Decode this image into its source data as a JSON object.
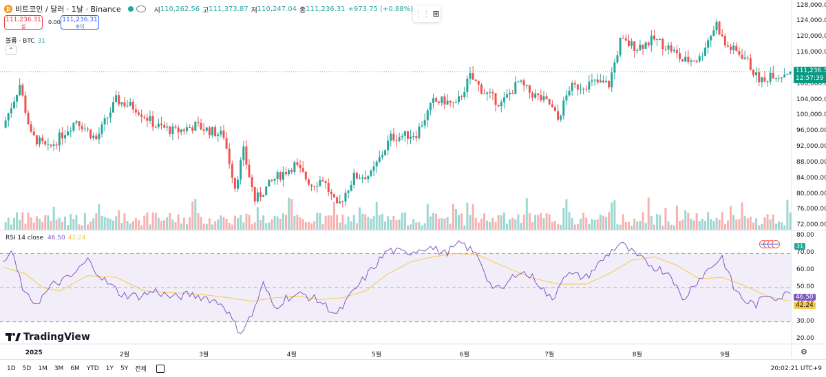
{
  "header": {
    "coin_icon_text": "₿",
    "symbol": "비트코인 / 달러 · 1날 · Binance",
    "open_label": "시",
    "open": "110,262.56",
    "high_label": "고",
    "high": "111,373.87",
    "low_label": "저",
    "low": "110,247.04",
    "close_label": "종",
    "close": "111,236.31",
    "change": "+973.75 (+0.88%)"
  },
  "trade": {
    "sell_price": "111,236.31",
    "sell_label": "셀",
    "spread": "0.00",
    "buy_price": "111,236.31",
    "buy_label": "바이"
  },
  "volume_legend": {
    "label": "볼륨 · BTC",
    "value": "31"
  },
  "volume_badge": "31",
  "rsi_legend": {
    "label": "RSI 14 close",
    "rsi": "46.50",
    "ma": "42.24"
  },
  "price_tag": {
    "value": "111,236.31",
    "countdown": "12:57:39"
  },
  "rsi_tags": {
    "rsi": "46.50",
    "ma": "42.24"
  },
  "price_axis": [
    "128,000.00",
    "124,000.00",
    "120,000.00",
    "116,000.00",
    "108,000.00",
    "104,000.00",
    "100,000.00",
    "96,000.00",
    "92,000.00",
    "88,000.00",
    "84,000.00",
    "80,000.00",
    "76,000.00",
    "72,000.00"
  ],
  "rsi_axis": [
    "80.00",
    "70.00",
    "60.00",
    "50.00",
    "40.00",
    "30.00",
    "20.00"
  ],
  "time_axis": [
    "2025",
    "2월",
    "3월",
    "4월",
    "5월",
    "6월",
    "7월",
    "8월",
    "9월"
  ],
  "timeframes": [
    "1D",
    "5D",
    "1M",
    "3M",
    "6M",
    "YTD",
    "1Y",
    "5Y",
    "전체"
  ],
  "clock": "20:02:21 UTC+9",
  "logo_text": "TradingView",
  "colors": {
    "up": "#26a69a",
    "down": "#ef5350",
    "rsi": "#7e57c2",
    "ma": "#f7c948",
    "rsi_band": "#ede7f6"
  },
  "chart_data": {
    "type": "candlestick",
    "title": "비트코인 / 달러 · 1날 · Binance",
    "x_range": [
      "2024-12-21",
      "2025-09-08"
    ],
    "price_range": [
      71000,
      129500
    ],
    "rsi_range": [
      17,
      83
    ],
    "rsi_levels": [
      70,
      50,
      30
    ],
    "last_price": 111236.31,
    "anchors": [
      [
        0,
        97000
      ],
      [
        6,
        108000
      ],
      [
        10,
        95000
      ],
      [
        16,
        91500
      ],
      [
        26,
        99000
      ],
      [
        33,
        94000
      ],
      [
        40,
        104000
      ],
      [
        47,
        102000
      ],
      [
        54,
        97500
      ],
      [
        61,
        96000
      ],
      [
        68,
        97500
      ],
      [
        78,
        95000
      ],
      [
        82,
        82000
      ],
      [
        85,
        91000
      ],
      [
        89,
        78500
      ],
      [
        96,
        84000
      ],
      [
        103,
        87500
      ],
      [
        109,
        82500
      ],
      [
        113,
        84000
      ],
      [
        118,
        76500
      ],
      [
        124,
        84500
      ],
      [
        130,
        85000
      ],
      [
        137,
        94500
      ],
      [
        142,
        95000
      ],
      [
        146,
        95500
      ],
      [
        152,
        103500
      ],
      [
        156,
        103800
      ],
      [
        160,
        102500
      ],
      [
        165,
        110000
      ],
      [
        170,
        106000
      ],
      [
        176,
        103000
      ],
      [
        182,
        108500
      ],
      [
        186,
        106000
      ],
      [
        193,
        103000
      ],
      [
        196,
        99000
      ],
      [
        200,
        107000
      ],
      [
        209,
        108500
      ],
      [
        214,
        108000
      ],
      [
        218,
        119000
      ],
      [
        224,
        117500
      ],
      [
        230,
        119500
      ],
      [
        236,
        117000
      ],
      [
        240,
        114000
      ],
      [
        246,
        114600
      ],
      [
        248,
        118000
      ],
      [
        252,
        123500
      ],
      [
        255,
        118000
      ],
      [
        262,
        115000
      ],
      [
        266,
        110000
      ],
      [
        269,
        108500
      ],
      [
        271,
        111000
      ],
      [
        274,
        110200
      ],
      [
        277,
        111236
      ]
    ],
    "rsi_anchors": [
      [
        0,
        64
      ],
      [
        3,
        71
      ],
      [
        8,
        45
      ],
      [
        12,
        41
      ],
      [
        18,
        52
      ],
      [
        24,
        56
      ],
      [
        30,
        66
      ],
      [
        36,
        54
      ],
      [
        42,
        46
      ],
      [
        48,
        45
      ],
      [
        54,
        48
      ],
      [
        60,
        44
      ],
      [
        66,
        46
      ],
      [
        72,
        44
      ],
      [
        78,
        40
      ],
      [
        82,
        28
      ],
      [
        84,
        24
      ],
      [
        88,
        34
      ],
      [
        92,
        52
      ],
      [
        96,
        38
      ],
      [
        100,
        44
      ],
      [
        106,
        46
      ],
      [
        112,
        42
      ],
      [
        118,
        34
      ],
      [
        124,
        48
      ],
      [
        130,
        60
      ],
      [
        136,
        72
      ],
      [
        142,
        70
      ],
      [
        150,
        74
      ],
      [
        156,
        70
      ],
      [
        162,
        76
      ],
      [
        168,
        68
      ],
      [
        172,
        52
      ],
      [
        176,
        48
      ],
      [
        182,
        60
      ],
      [
        188,
        55
      ],
      [
        194,
        42
      ],
      [
        198,
        58
      ],
      [
        206,
        56
      ],
      [
        214,
        70
      ],
      [
        218,
        76
      ],
      [
        224,
        68
      ],
      [
        230,
        62
      ],
      [
        236,
        58
      ],
      [
        240,
        42
      ],
      [
        244,
        52
      ],
      [
        250,
        62
      ],
      [
        254,
        68
      ],
      [
        258,
        50
      ],
      [
        262,
        42
      ],
      [
        266,
        40
      ],
      [
        270,
        46
      ],
      [
        274,
        44
      ],
      [
        277,
        46.5
      ]
    ],
    "ma_anchors": [
      [
        0,
        62
      ],
      [
        8,
        58
      ],
      [
        14,
        50
      ],
      [
        20,
        48
      ],
      [
        30,
        57
      ],
      [
        40,
        56
      ],
      [
        50,
        48
      ],
      [
        60,
        47
      ],
      [
        70,
        46
      ],
      [
        80,
        44
      ],
      [
        88,
        42
      ],
      [
        96,
        44
      ],
      [
        104,
        45
      ],
      [
        112,
        43
      ],
      [
        120,
        44
      ],
      [
        128,
        48
      ],
      [
        136,
        58
      ],
      [
        144,
        65
      ],
      [
        152,
        68
      ],
      [
        160,
        70
      ],
      [
        168,
        69
      ],
      [
        176,
        63
      ],
      [
        186,
        56
      ],
      [
        196,
        52
      ],
      [
        206,
        52
      ],
      [
        214,
        58
      ],
      [
        222,
        66
      ],
      [
        230,
        68
      ],
      [
        238,
        63
      ],
      [
        246,
        55
      ],
      [
        254,
        56
      ],
      [
        262,
        51
      ],
      [
        270,
        45
      ],
      [
        277,
        42.24
      ]
    ]
  }
}
